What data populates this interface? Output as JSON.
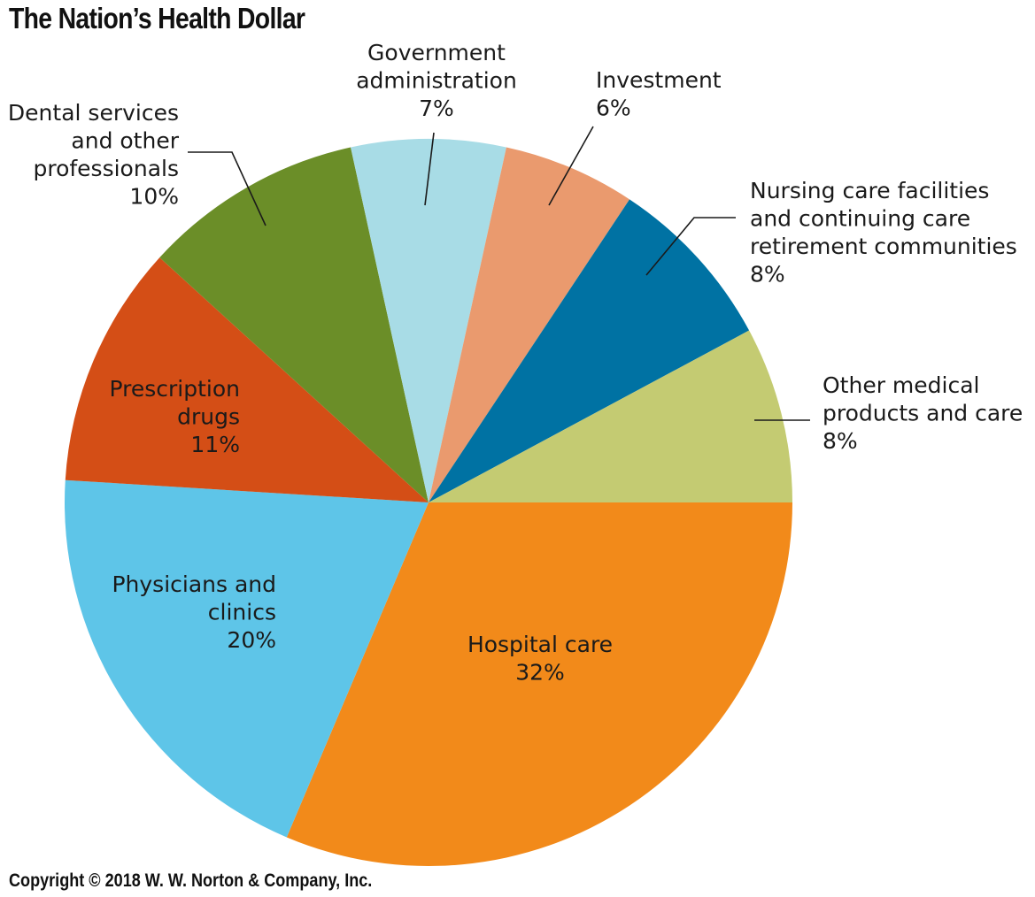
{
  "title": "The Nation’s Health Dollar",
  "copyright": "Copyright © 2018 W. W. Norton & Company, Inc.",
  "chart_data": {
    "type": "pie",
    "title": "The Nation’s Health Dollar",
    "start_angle_deg": 90,
    "direction": "clockwise",
    "slices": [
      {
        "label_lines": [
          "Hospital care"
        ],
        "pct_text": "32%",
        "value": 32,
        "color": "#F28A1A",
        "label_color": "#1a1a1a"
      },
      {
        "label_lines": [
          "Physicians and",
          "clinics"
        ],
        "pct_text": "20%",
        "value": 20,
        "color": "#5EC5E8",
        "label_color": "#1a1a1a"
      },
      {
        "label_lines": [
          "Prescription",
          "drugs"
        ],
        "pct_text": "11%",
        "value": 11,
        "color": "#D44E16",
        "label_color": "#ffffff"
      },
      {
        "label_lines": [
          "Dental services",
          "and other",
          "professionals"
        ],
        "pct_text": "10%",
        "value": 10,
        "color": "#6B8E28",
        "label_color": "#1a1a1a"
      },
      {
        "label_lines": [
          "Government",
          "administration"
        ],
        "pct_text": "7%",
        "value": 7,
        "color": "#A8DCE6",
        "label_color": "#1a1a1a"
      },
      {
        "label_lines": [
          "Investment"
        ],
        "pct_text": "6%",
        "value": 6,
        "color": "#EA9A6E",
        "label_color": "#1a1a1a"
      },
      {
        "label_lines": [
          "Nursing care facilities",
          "and continuing care",
          "retirement communities"
        ],
        "pct_text": "8%",
        "value": 8,
        "color": "#0072A3",
        "label_color": "#1a1a1a"
      },
      {
        "label_lines": [
          "Other medical",
          "products and care"
        ],
        "pct_text": "8%",
        "value": 8,
        "color": "#C4CB72",
        "label_color": "#1a1a1a"
      }
    ]
  }
}
